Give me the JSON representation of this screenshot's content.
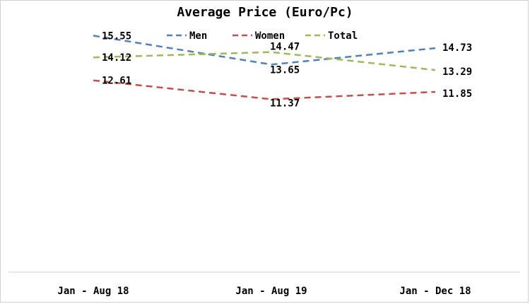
{
  "chart_data": {
    "type": "line",
    "title": "Average Price (Euro/Pc)",
    "categories": [
      "Jan - Aug 18",
      "Jan - Aug 19",
      "Jan - Dec 18"
    ],
    "series": [
      {
        "name": "Men",
        "values": [
          15.55,
          13.65,
          14.73
        ],
        "value_labels": [
          "15.55",
          "13.65",
          "14.73"
        ],
        "color": "#4f81bd"
      },
      {
        "name": "Women",
        "values": [
          12.61,
          11.37,
          11.85
        ],
        "value_labels": [
          "12.61",
          "11.37",
          "11.85"
        ],
        "color": "#c0504d"
      },
      {
        "name": "Total",
        "values": [
          14.12,
          14.47,
          13.29
        ],
        "value_labels": [
          "14.12",
          "14.47",
          "13.29"
        ],
        "color": "#9bbb59"
      }
    ],
    "legend_position": "top",
    "grid": false,
    "line_style": "dashed",
    "xlabel": "",
    "ylabel": ""
  }
}
